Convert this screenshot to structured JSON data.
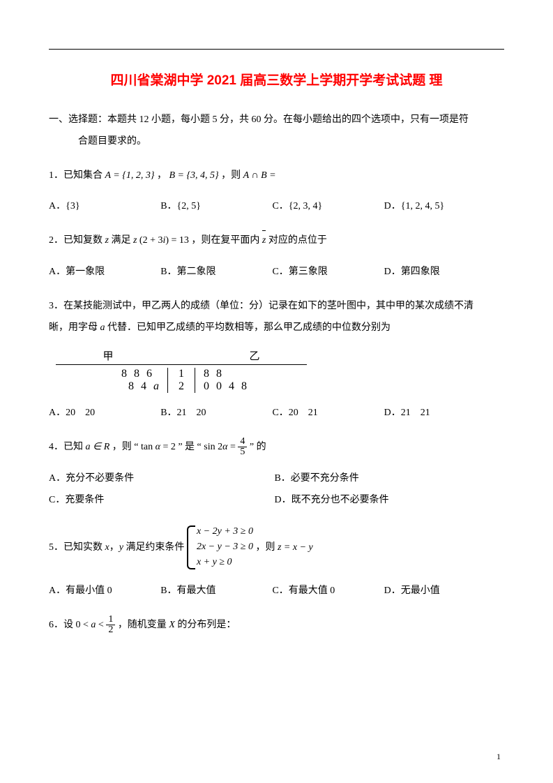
{
  "colors": {
    "title": "#ff0000",
    "text": "#000000",
    "bg": "#ffffff"
  },
  "title": "四川省棠湖中学 2021 届高三数学上学期开学考试试题 理",
  "section_intro_l1": "一、选择题：本题共 12 小题，每小题 5 分，共 60 分。在每小题给出的四个选项中，只有一项是符",
  "section_intro_l2": "合题目要求的。",
  "q1": {
    "text_pre": "1．已知集合 ",
    "A": "A = {1, 2, 3}",
    "mid": " ， ",
    "B": "B = {3, 4, 5}",
    "post": " ，则 ",
    "expr": "A ∩ B =",
    "opts": {
      "A": "A．{3}",
      "B": "B．{2, 5}",
      "C": "C．{2, 3, 4}",
      "D": "D．{1, 2, 4, 5}"
    }
  },
  "q2": {
    "text": "2．已知复数 z 满足 z (2 + 3i) = 13 ，则在复平面内 z̄ 对应的点位于",
    "opts": {
      "A": "A．第一象限",
      "B": "B．第二象限",
      "C": "C．第三象限",
      "D": "D．第四象限"
    }
  },
  "q3": {
    "l1": "3．在某技能测试中，甲乙两人的成绩（单位：分）记录在如下的茎叶图中，其中甲的某次成绩不清",
    "l2": "晰，用字母 a 代替．已知甲乙成绩的平均数相等，那么甲乙成绩的中位数分别为",
    "stemleaf": {
      "header": {
        "left": "甲",
        "right": "乙"
      },
      "rows": [
        {
          "left": "8  8  6",
          "stem": "1",
          "right": "8  8"
        },
        {
          "left": "8  4  a",
          "stem": "2",
          "right": "0  0  4  8"
        }
      ]
    },
    "opts": {
      "A": "A．20　20",
      "B": "B．21　20",
      "C": "C．20　21",
      "D": "D．21　21"
    }
  },
  "q4": {
    "pre": "4．已知 ",
    "aR": "a ∈ R",
    "mid1": " ，则 “ ",
    "tan": "tan α = 2",
    "mid2": " ” 是 “ ",
    "sin_l": "sin 2α = ",
    "frac_num": "4",
    "frac_den": "5",
    "post": " ” 的",
    "opts": {
      "A": "A．充分不必要条件",
      "B": "B．必要不充分条件",
      "C": "C．充要条件",
      "D": "D．既不充分也不必要条件"
    }
  },
  "q5": {
    "pre": "5．已知实数 x，y 满足约束条件 ",
    "sys1": "x − 2y + 3 ≥ 0",
    "sys2": "2x − y − 3 ≥ 0",
    "sys3": "x + y ≥ 0",
    "post_pre": " ，则 ",
    "zeq": "z = x − y",
    "opts": {
      "A": "A．有最小值 0",
      "B": "B．有最大值",
      "C": "C．有最大值 0",
      "D": "D．无最小值"
    }
  },
  "q6": {
    "pre": "6．设 ",
    "ineq_l": "0 < a < ",
    "frac_num": "1",
    "frac_den": "2",
    "post": " ，随机变量 X 的分布列是："
  },
  "page_number": "1"
}
